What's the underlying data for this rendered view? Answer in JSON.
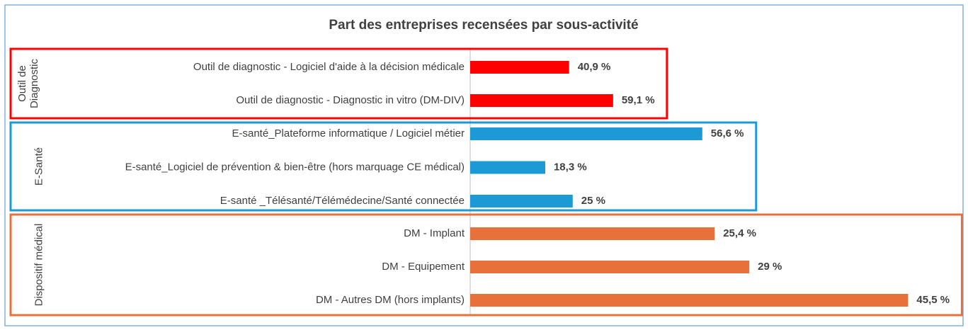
{
  "chart_data": {
    "type": "bar",
    "orientation": "horizontal",
    "title": "Part des entreprises recensées par sous-activité",
    "groups": [
      {
        "name": "Outil de Diagnostic",
        "color": "#ff0000",
        "xlim": [
          0,
          195
        ],
        "categories": [
          "Outil de diagnostic - Logiciel d'aide à la décision médicale",
          "Outil de diagnostic - Diagnostic in vitro (DM-DIV)"
        ],
        "values": [
          40.9,
          59.1
        ],
        "value_labels": [
          "40,9 %",
          "59,1 %"
        ]
      },
      {
        "name": "E-Santé",
        "color": "#1b9ad6",
        "xlim": [
          0,
          115
        ],
        "categories": [
          "E-santé_Plateforme informatique / Logiciel métier",
          "E-santé_Logiciel de prévention & bien-être (hors marquage CE médical)",
          "E-santé _Télésanté/Télémédecine/Santé connectée"
        ],
        "values": [
          56.6,
          18.3,
          25
        ],
        "value_labels": [
          "56,6 %",
          "18,3 %",
          "25 %"
        ]
      },
      {
        "name": "Dispositif médical",
        "color": "#e8703a",
        "xlim": [
          0,
          49
        ],
        "categories": [
          "DM - Implant",
          "DM - Equipement",
          "DM - Autres DM (hors implants)"
        ],
        "values": [
          25.4,
          29,
          45.5
        ],
        "value_labels": [
          "25,4 %",
          "29 %",
          "45,5 %"
        ]
      }
    ]
  }
}
